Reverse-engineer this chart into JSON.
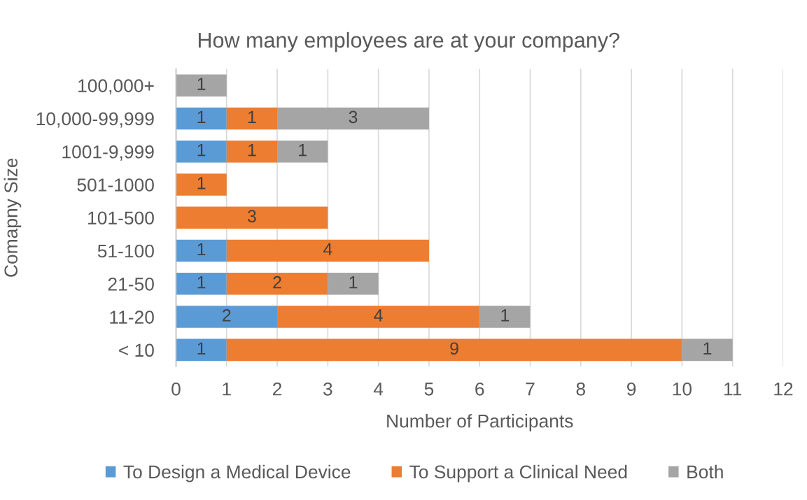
{
  "chart_data": {
    "type": "bar",
    "orientation": "horizontal",
    "stacked": true,
    "title": "How many employees are at your company?",
    "xlabel": "Number of Participants",
    "ylabel": "Comapny Size",
    "categories": [
      "100,000+",
      "10,000-99,999",
      "1001-9,999",
      "501-1000",
      "101-500",
      "51-100",
      "21-50",
      "11-20",
      "< 10"
    ],
    "series": [
      {
        "name": "To Design a Medical Device",
        "color": "#5b9bd5",
        "values": [
          null,
          1,
          1,
          null,
          null,
          1,
          1,
          2,
          1
        ]
      },
      {
        "name": "To Support a Clinical Need",
        "color": "#ed7d31",
        "values": [
          null,
          1,
          1,
          1,
          3,
          4,
          2,
          4,
          9
        ]
      },
      {
        "name": "Both",
        "color": "#a5a5a5",
        "values": [
          1,
          3,
          1,
          null,
          null,
          null,
          1,
          1,
          1
        ]
      }
    ],
    "xlim": [
      0,
      12
    ],
    "xticks": [
      0,
      1,
      2,
      3,
      4,
      5,
      6,
      7,
      8,
      9,
      10,
      11,
      12
    ],
    "grid": "x",
    "legend": "bottom",
    "data_labels": true
  }
}
